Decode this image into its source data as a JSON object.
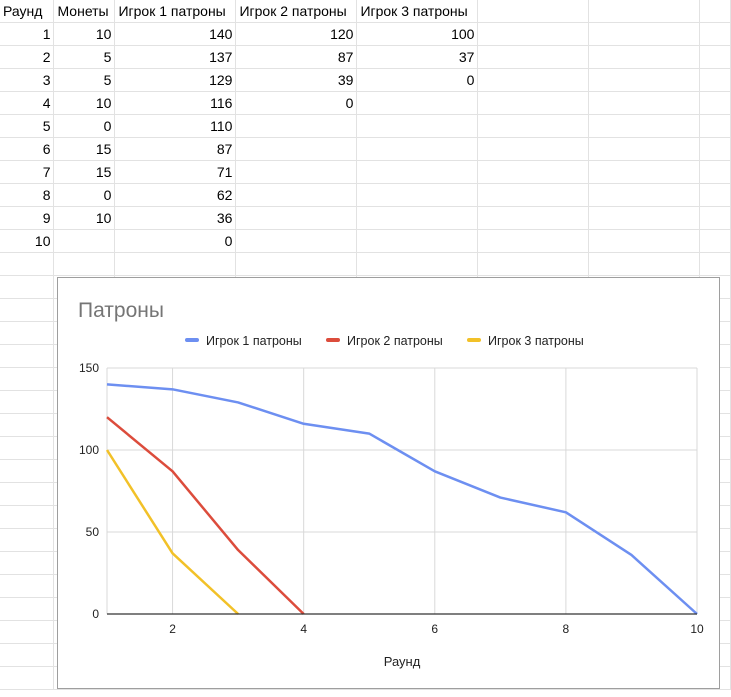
{
  "sheet": {
    "headers": [
      "Раунд",
      "Монеты",
      "Игрок 1 патроны",
      "Игрок 2 патроны",
      "Игрок 3 патроны"
    ],
    "rows": [
      [
        "1",
        "10",
        "140",
        "120",
        "100"
      ],
      [
        "2",
        "5",
        "137",
        "87",
        "37"
      ],
      [
        "3",
        "5",
        "129",
        "39",
        "0"
      ],
      [
        "4",
        "10",
        "116",
        "0",
        ""
      ],
      [
        "5",
        "0",
        "110",
        "",
        ""
      ],
      [
        "6",
        "15",
        "87",
        "",
        ""
      ],
      [
        "7",
        "15",
        "71",
        "",
        ""
      ],
      [
        "8",
        "0",
        "62",
        "",
        ""
      ],
      [
        "9",
        "10",
        "36",
        "",
        ""
      ],
      [
        "10",
        "",
        "0",
        "",
        ""
      ]
    ]
  },
  "chart_data": {
    "type": "line",
    "title": "Патроны",
    "xlabel": "Раунд",
    "ylabel": "",
    "xlim": [
      1,
      10
    ],
    "ylim": [
      0,
      150
    ],
    "x_ticks": [
      2,
      4,
      6,
      8,
      10
    ],
    "y_ticks": [
      0,
      50,
      100,
      150
    ],
    "grid": true,
    "legend_position": "top",
    "series": [
      {
        "name": "Игрок 1 патроны",
        "color": "#6d8ff1",
        "x": [
          1,
          2,
          3,
          4,
          5,
          6,
          7,
          8,
          9,
          10
        ],
        "y": [
          140,
          137,
          129,
          116,
          110,
          87,
          71,
          62,
          36,
          0
        ]
      },
      {
        "name": "Игрок 2 патроны",
        "color": "#dc4c3c",
        "x": [
          1,
          2,
          3,
          4
        ],
        "y": [
          120,
          87,
          39,
          0
        ]
      },
      {
        "name": "Игрок 3 патроны",
        "color": "#f2c128",
        "x": [
          1,
          2,
          3
        ],
        "y": [
          100,
          37,
          0
        ]
      }
    ]
  }
}
